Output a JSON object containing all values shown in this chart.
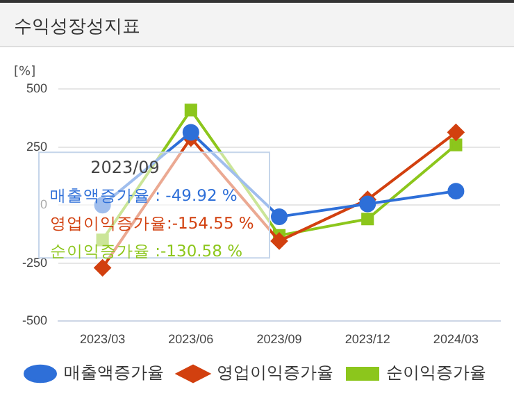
{
  "chart_data": {
    "type": "line",
    "title": "수익성장성지표",
    "ylabel": "[%]",
    "categories": [
      "2023/03",
      "2023/06",
      "2023/09",
      "2023/12",
      "2024/03"
    ],
    "series": [
      {
        "name": "매출액증가율",
        "color": "#2e6fd8",
        "marker": "circle",
        "values": [
          0,
          313,
          -49.92,
          5,
          60
        ]
      },
      {
        "name": "영업이익증가율",
        "color": "#d2400f",
        "marker": "diamond",
        "values": [
          -270,
          289,
          -154.55,
          24,
          313
        ]
      },
      {
        "name": "순이익증가율",
        "color": "#8cc61c",
        "marker": "square",
        "values": [
          -150,
          409,
          -130.58,
          -60,
          259
        ]
      }
    ],
    "ylim": [
      -500,
      500
    ],
    "yticks": [
      -500,
      -250,
      0,
      250,
      500
    ],
    "grid": "y",
    "legend": "bottom",
    "annotations": [
      "2023/09",
      "매출액증가율 : -49.92 %",
      "영업이익증가율:-154.55 %",
      "순이익증가율 :-130.58 %"
    ]
  }
}
